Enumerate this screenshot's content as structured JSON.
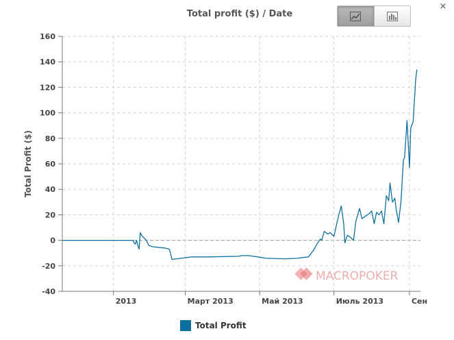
{
  "window": {
    "close_symbol": "×"
  },
  "toolbar": {
    "line_view_icon": "line-chart-icon",
    "bar_view_icon": "bar-chart-icon",
    "active_view": "line"
  },
  "watermark": {
    "text": "MACROPOKER"
  },
  "colors": {
    "series": "#0d6fa0",
    "watermark": "#e8a0a0"
  },
  "chart_data": {
    "type": "line",
    "title": "Total profit ($) / Date",
    "xlabel": "",
    "ylabel": "Total Profit ($)",
    "ylim": [
      -40,
      160
    ],
    "yticks": [
      -40,
      -20,
      0,
      20,
      40,
      60,
      80,
      100,
      120,
      140,
      160
    ],
    "xlim": [
      "2012-11-20",
      "2013-09-10"
    ],
    "xticks": [
      {
        "date": "2013-01-01",
        "label": "2013"
      },
      {
        "date": "2013-03-01",
        "label": "Март 2013"
      },
      {
        "date": "2013-05-01",
        "label": "Май 2013"
      },
      {
        "date": "2013-07-01",
        "label": "Июль 2013"
      },
      {
        "date": "2013-09-01",
        "label": "Сен"
      }
    ],
    "grid": true,
    "legend_position": "bottom-center",
    "series": [
      {
        "name": "Total Profit",
        "color": "#0d6fa0",
        "points": [
          [
            "2012-11-20",
            0
          ],
          [
            "2013-01-12",
            0
          ],
          [
            "2013-01-17",
            0
          ],
          [
            "2013-01-18",
            -2
          ],
          [
            "2013-01-19",
            -3
          ],
          [
            "2013-01-20",
            0
          ],
          [
            "2013-01-21",
            -4
          ],
          [
            "2013-01-22",
            -7
          ],
          [
            "2013-01-23",
            6
          ],
          [
            "2013-01-24",
            4
          ],
          [
            "2013-01-26",
            2
          ],
          [
            "2013-01-28",
            0
          ],
          [
            "2013-01-30",
            -4
          ],
          [
            "2013-02-02",
            -5
          ],
          [
            "2013-02-12",
            -6
          ],
          [
            "2013-02-16",
            -7
          ],
          [
            "2013-02-18",
            -15
          ],
          [
            "2013-02-26",
            -14
          ],
          [
            "2013-03-06",
            -13
          ],
          [
            "2013-03-20",
            -13
          ],
          [
            "2013-04-14",
            -12.5
          ],
          [
            "2013-04-16",
            -12
          ],
          [
            "2013-04-22",
            -12
          ],
          [
            "2013-05-06",
            -14
          ],
          [
            "2013-05-22",
            -14.5
          ],
          [
            "2013-06-01",
            -14
          ],
          [
            "2013-06-10",
            -13
          ],
          [
            "2013-06-14",
            -8
          ],
          [
            "2013-06-17",
            -3
          ],
          [
            "2013-06-19",
            0
          ],
          [
            "2013-06-20",
            1
          ],
          [
            "2013-06-21",
            0
          ],
          [
            "2013-06-23",
            7
          ],
          [
            "2013-06-26",
            5
          ],
          [
            "2013-06-28",
            6
          ],
          [
            "2013-07-01",
            3
          ],
          [
            "2013-07-03",
            12
          ],
          [
            "2013-07-05",
            20
          ],
          [
            "2013-07-07",
            27
          ],
          [
            "2013-07-09",
            13
          ],
          [
            "2013-07-10",
            -2
          ],
          [
            "2013-07-12",
            4
          ],
          [
            "2013-07-15",
            2
          ],
          [
            "2013-07-17",
            0
          ],
          [
            "2013-07-19",
            15
          ],
          [
            "2013-07-22",
            25
          ],
          [
            "2013-07-24",
            17
          ],
          [
            "2013-07-27",
            19
          ],
          [
            "2013-07-30",
            21
          ],
          [
            "2013-08-01",
            23
          ],
          [
            "2013-08-03",
            13
          ],
          [
            "2013-08-05",
            22
          ],
          [
            "2013-08-07",
            20
          ],
          [
            "2013-08-09",
            23
          ],
          [
            "2013-08-11",
            13
          ],
          [
            "2013-08-13",
            35
          ],
          [
            "2013-08-15",
            31
          ],
          [
            "2013-08-16",
            45
          ],
          [
            "2013-08-18",
            30
          ],
          [
            "2013-08-20",
            33
          ],
          [
            "2013-08-21",
            25
          ],
          [
            "2013-08-23",
            14
          ],
          [
            "2013-08-25",
            30
          ],
          [
            "2013-08-27",
            63
          ],
          [
            "2013-08-28",
            65
          ],
          [
            "2013-08-30",
            94
          ],
          [
            "2013-09-01",
            57
          ],
          [
            "2013-09-02",
            88
          ],
          [
            "2013-09-04",
            93
          ],
          [
            "2013-09-06",
            125
          ],
          [
            "2013-09-07",
            134
          ]
        ]
      }
    ]
  }
}
